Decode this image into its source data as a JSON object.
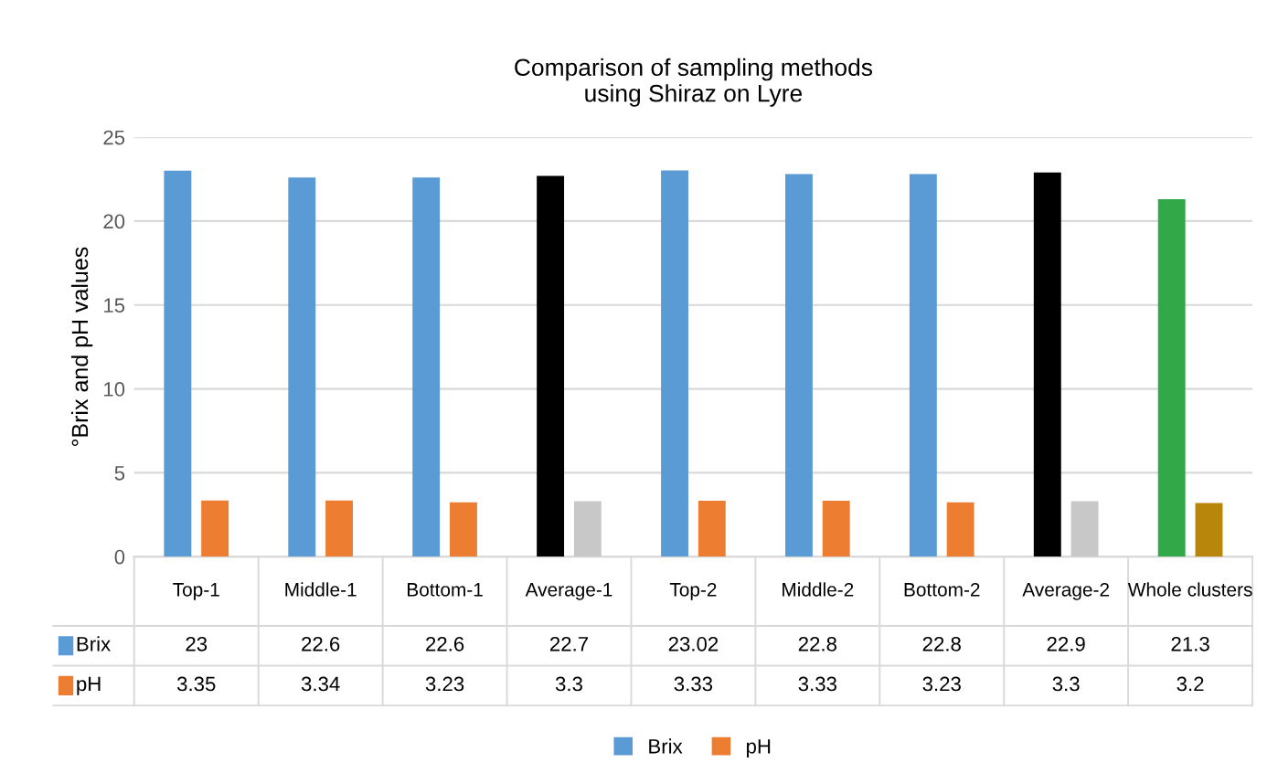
{
  "chart_data": {
    "type": "bar",
    "title": "Comparison of sampling methods\nusing Shiraz on Lyre",
    "ylabel": "°Brix and pH values",
    "categories": [
      "Top-1",
      "Middle-1",
      "Bottom-1",
      "Average-1",
      "Top-2",
      "Middle-2",
      "Bottom-2",
      "Average-2",
      "Whole clusters"
    ],
    "series": [
      {
        "name": "Brix",
        "color": "#5b9bd5",
        "colors": [
          "#5b9bd5",
          "#5b9bd5",
          "#5b9bd5",
          "#000000",
          "#5b9bd5",
          "#5b9bd5",
          "#5b9bd5",
          "#000000",
          "#33a849"
        ],
        "values": [
          23,
          22.6,
          22.6,
          22.7,
          23.02,
          22.8,
          22.8,
          22.9,
          21.3
        ]
      },
      {
        "name": "pH",
        "color": "#ed7d31",
        "colors": [
          "#ed7d31",
          "#ed7d31",
          "#ed7d31",
          "#c8c8c8",
          "#ed7d31",
          "#ed7d31",
          "#ed7d31",
          "#c8c8c8",
          "#b8860b"
        ],
        "values": [
          3.35,
          3.34,
          3.23,
          3.3,
          3.33,
          3.33,
          3.23,
          3.3,
          3.2
        ]
      }
    ],
    "ylim": [
      0,
      25
    ],
    "yticks": [
      0,
      5,
      10,
      15,
      20,
      25
    ],
    "grid": "y",
    "legend": "bottom",
    "data_labels": true
  }
}
